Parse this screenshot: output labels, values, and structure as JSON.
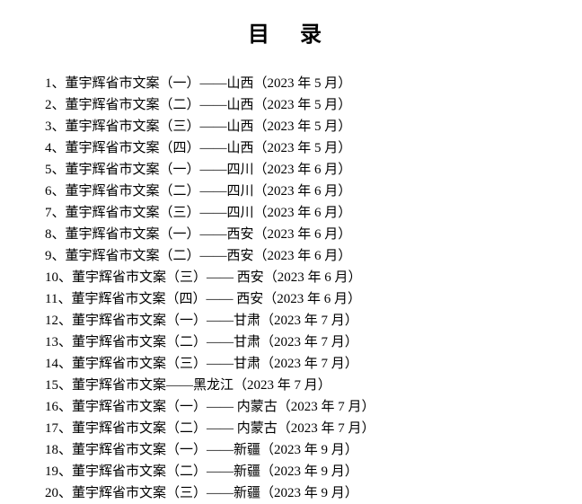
{
  "title": "目 录",
  "items": [
    {
      "num": "1",
      "text": "董宇辉省市文案（一）——山西（2023 年 5 月）"
    },
    {
      "num": "2",
      "text": "董宇辉省市文案（二）——山西（2023 年 5 月）"
    },
    {
      "num": "3",
      "text": "董宇辉省市文案（三）——山西（2023 年 5 月）"
    },
    {
      "num": "4",
      "text": "董宇辉省市文案（四）——山西（2023 年 5 月）"
    },
    {
      "num": "5",
      "text": "董宇辉省市文案（一）——四川（2023 年 6 月）"
    },
    {
      "num": "6",
      "text": "董宇辉省市文案（二）——四川（2023 年 6 月）"
    },
    {
      "num": "7",
      "text": "董宇辉省市文案（三）——四川（2023 年 6 月）"
    },
    {
      "num": "8",
      "text": "董宇辉省市文案（一）——西安（2023 年 6 月）"
    },
    {
      "num": "9",
      "text": "董宇辉省市文案（二）——西安（2023 年 6 月）"
    },
    {
      "num": "10",
      "text": "董宇辉省市文案（三）—— 西安（2023 年 6 月）"
    },
    {
      "num": "11",
      "text": "董宇辉省市文案（四）—— 西安（2023 年 6 月）"
    },
    {
      "num": "12",
      "text": "董宇辉省市文案（一）——甘肃（2023 年 7 月）"
    },
    {
      "num": "13",
      "text": "董宇辉省市文案（二）——甘肃（2023 年 7 月）"
    },
    {
      "num": "14",
      "text": "董宇辉省市文案（三）——甘肃（2023 年 7 月）"
    },
    {
      "num": "15",
      "text": "董宇辉省市文案——黑龙江（2023 年 7 月）"
    },
    {
      "num": "16",
      "text": "董宇辉省市文案（一）—— 内蒙古（2023 年 7 月）"
    },
    {
      "num": "17",
      "text": "董宇辉省市文案（二）—— 内蒙古（2023 年 7 月）"
    },
    {
      "num": "18",
      "text": "董宇辉省市文案（一）——新疆（2023 年 9 月）"
    },
    {
      "num": "19",
      "text": "董宇辉省市文案（二）——新疆（2023 年 9 月）"
    },
    {
      "num": "20",
      "text": "董宇辉省市文案（三）——新疆（2023 年 9 月）"
    }
  ],
  "colors": {
    "background": "#ffffff",
    "text": "#000000"
  },
  "typography": {
    "title_fontsize": 24,
    "body_fontsize": 15,
    "line_height": 24,
    "font_family": "SimSun"
  }
}
